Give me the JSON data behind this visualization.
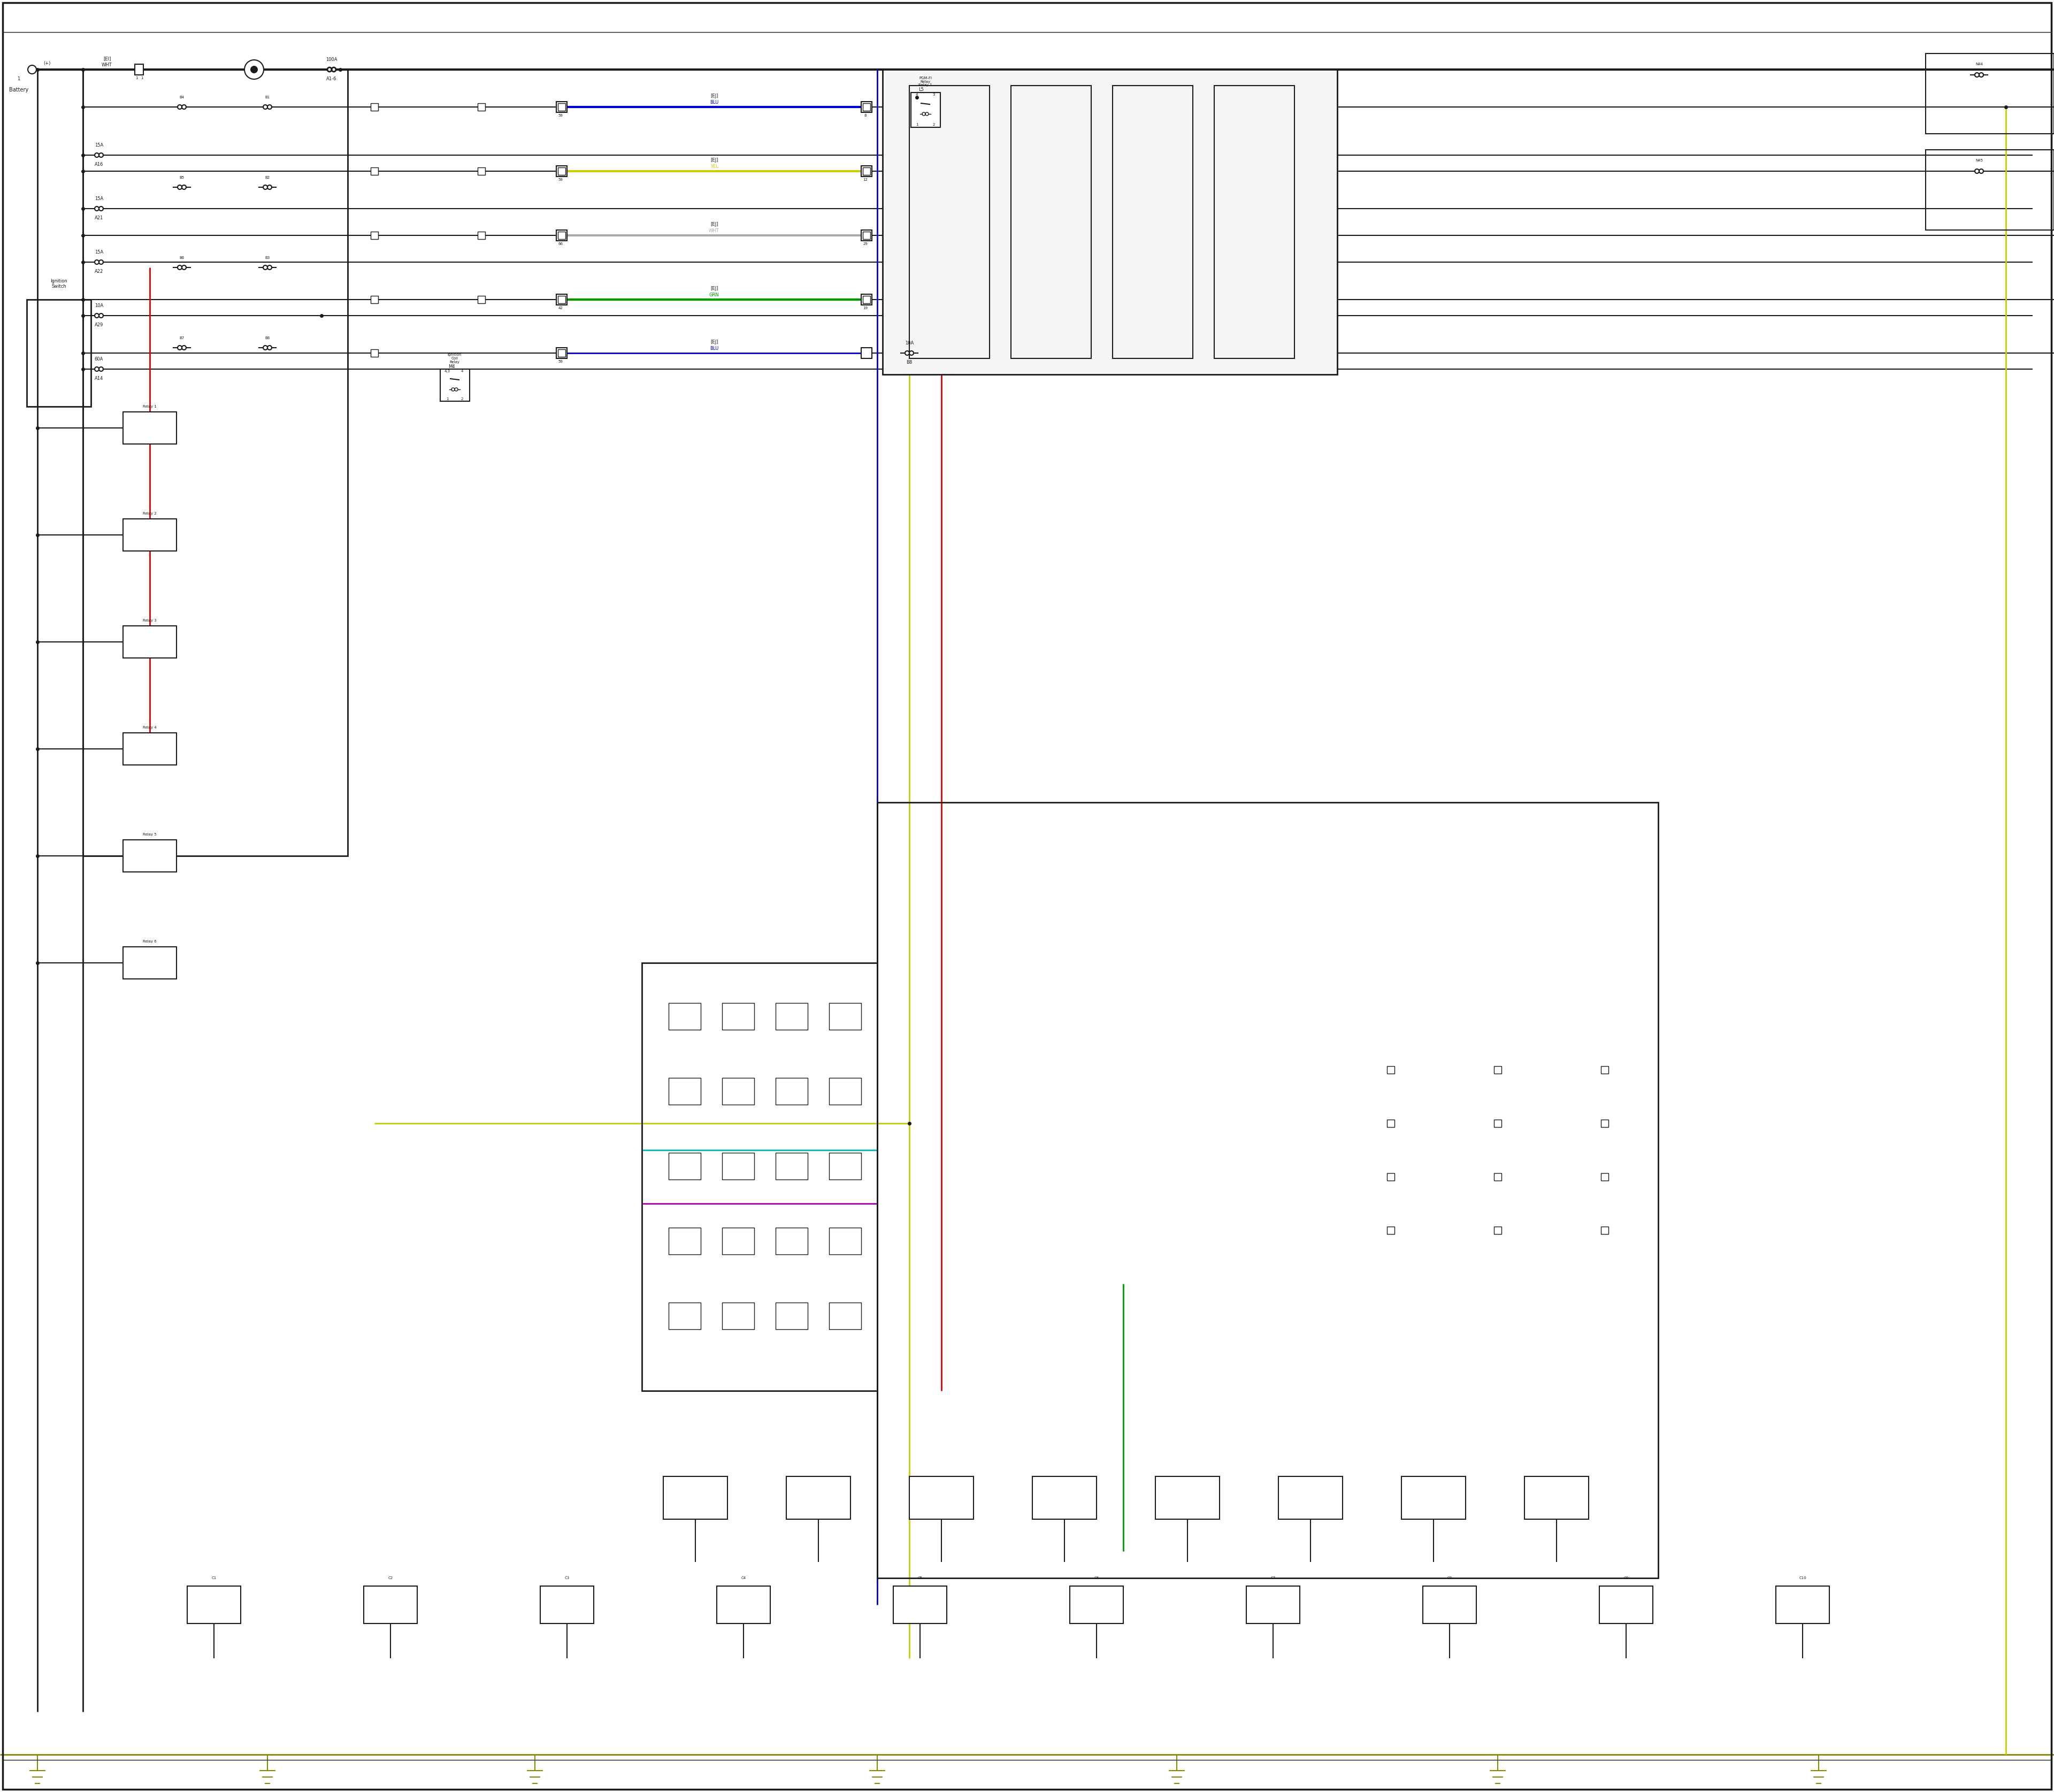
{
  "bg_color": "#ffffff",
  "wire_black": "#1a1a1a",
  "wire_red": "#dd0000",
  "wire_blue": "#0000cc",
  "wire_yellow": "#cccc00",
  "wire_green": "#009900",
  "wire_cyan": "#00bbbb",
  "wire_purple": "#aa00aa",
  "wire_olive": "#888800",
  "wire_gray": "#aaaaaa",
  "wire_dk_gray": "#666666",
  "figsize": [
    38.4,
    33.5
  ],
  "xlim": [
    0,
    3840
  ],
  "ylim": [
    0,
    3350
  ]
}
